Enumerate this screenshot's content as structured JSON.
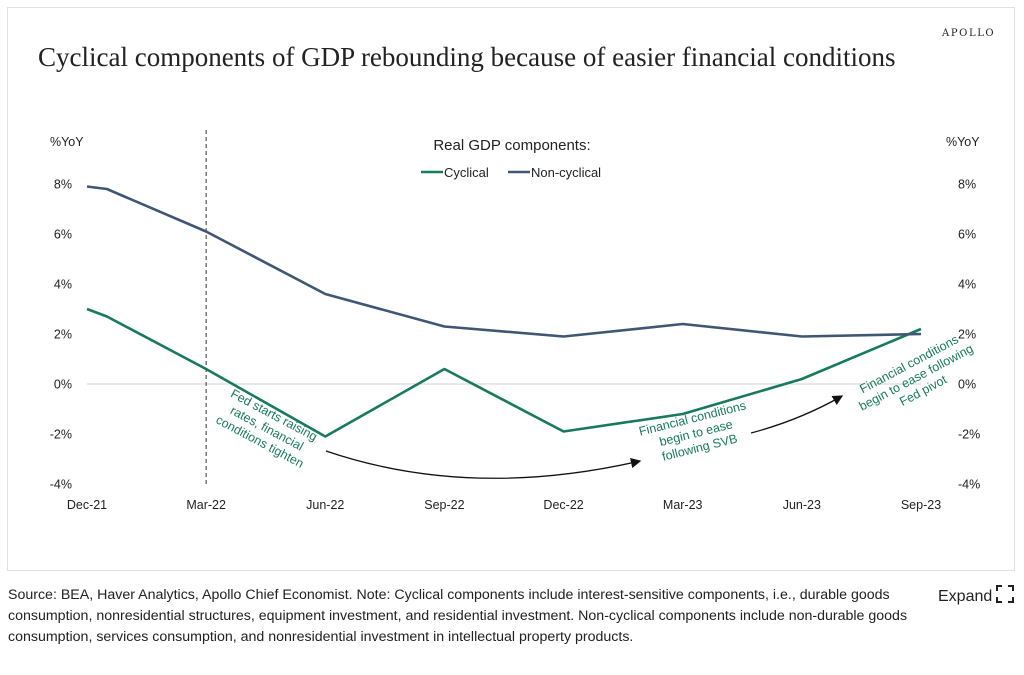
{
  "header": {
    "brand": "APOLLO",
    "title": "Cyclical components of GDP rebounding because of easier financial conditions"
  },
  "chart_data": {
    "type": "line",
    "legend_title": "Real GDP components:",
    "left_axis_unit": "%YoY",
    "right_axis_unit": "%YoY",
    "y_ticks": [
      "8%",
      "6%",
      "4%",
      "2%",
      "0%",
      "-2%",
      "-4%"
    ],
    "y_tick_values": [
      8,
      6,
      4,
      2,
      0,
      -2,
      -4
    ],
    "ylim": [
      -4,
      8
    ],
    "x_tick_labels": [
      "Dec-21",
      "Mar-22",
      "Jun-22",
      "Sep-22",
      "Dec-22",
      "Mar-23",
      "Jun-23",
      "Sep-23"
    ],
    "x_tick_positions": [
      0,
      3,
      6,
      9,
      12,
      15,
      18,
      21
    ],
    "xlim": [
      0,
      21
    ],
    "vline_at": 3,
    "series": [
      {
        "name": "Cyclical",
        "color": "#187a5c",
        "x": [
          0,
          0.5,
          3,
          6,
          9,
          12,
          15,
          18,
          21
        ],
        "values": [
          3.0,
          2.7,
          0.6,
          -2.1,
          0.6,
          -1.9,
          -1.2,
          0.2,
          2.2
        ]
      },
      {
        "name": "Non-cyclical",
        "color": "#3f5674",
        "x": [
          0,
          0.5,
          3,
          6,
          9,
          12,
          15,
          18,
          21
        ],
        "values": [
          7.9,
          7.8,
          6.1,
          3.6,
          2.3,
          1.9,
          2.4,
          1.9,
          2.0
        ]
      }
    ],
    "annotations": [
      {
        "lines": [
          "Fed starts raising",
          "rates, financial",
          "conditions tighten"
        ]
      },
      {
        "lines": [
          "Financial conditions",
          "begin to ease",
          "following SVB"
        ]
      },
      {
        "lines": [
          "Financial conditions",
          "begin to ease following",
          "Fed pivot"
        ]
      }
    ]
  },
  "footer": {
    "source": "Source: BEA, Haver Analytics, Apollo Chief Economist. Note: Cyclical components include interest-sensitive components, i.e., durable goods consumption, nonresidential structures, equipment investment, and residential investment. Non-cyclical components include non-durable goods consumption, services consumption, and nonresidential investment in intellectual property products.",
    "expand_label": "Expand"
  }
}
